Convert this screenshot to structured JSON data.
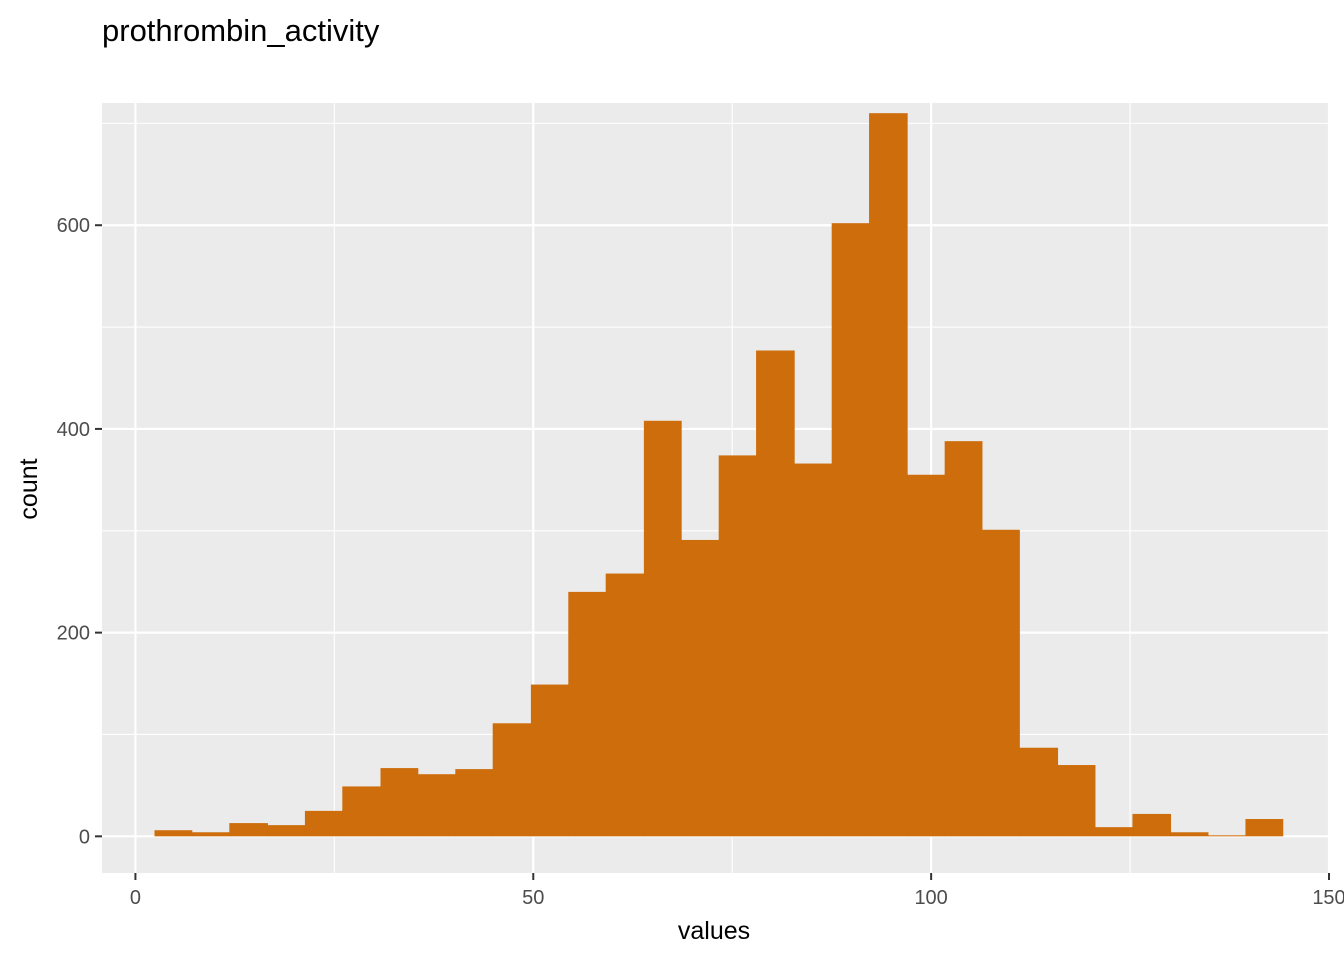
{
  "chart_data": {
    "type": "bar",
    "title": "prothrombin_activity",
    "xlabel": "values",
    "ylabel": "count",
    "xlim": [
      -4.2,
      150
    ],
    "ylim": [
      -36,
      720
    ],
    "x_ticks": [
      0,
      50,
      100,
      150
    ],
    "y_ticks": [
      0,
      200,
      400,
      600
    ],
    "grid": true,
    "bar_color": "#CD6D0B",
    "panel_color": "#EBEBEB",
    "bins": [
      {
        "x0": 2.4,
        "x1": 7.1,
        "count": 6
      },
      {
        "x0": 7.1,
        "x1": 11.8,
        "count": 4
      },
      {
        "x0": 11.8,
        "x1": 16.6,
        "count": 13
      },
      {
        "x0": 16.6,
        "x1": 21.3,
        "count": 11
      },
      {
        "x0": 21.3,
        "x1": 26.0,
        "count": 25
      },
      {
        "x0": 26.0,
        "x1": 30.8,
        "count": 49
      },
      {
        "x0": 30.8,
        "x1": 35.5,
        "count": 67
      },
      {
        "x0": 35.5,
        "x1": 40.2,
        "count": 61
      },
      {
        "x0": 40.2,
        "x1": 44.9,
        "count": 66
      },
      {
        "x0": 44.9,
        "x1": 49.7,
        "count": 111
      },
      {
        "x0": 49.7,
        "x1": 54.4,
        "count": 149
      },
      {
        "x0": 54.4,
        "x1": 59.1,
        "count": 240
      },
      {
        "x0": 59.1,
        "x1": 63.9,
        "count": 258
      },
      {
        "x0": 63.9,
        "x1": 68.6,
        "count": 408
      },
      {
        "x0": 68.6,
        "x1": 73.3,
        "count": 291
      },
      {
        "x0": 73.3,
        "x1": 78.0,
        "count": 374
      },
      {
        "x0": 78.0,
        "x1": 82.8,
        "count": 477
      },
      {
        "x0": 82.8,
        "x1": 87.5,
        "count": 366
      },
      {
        "x0": 87.5,
        "x1": 92.2,
        "count": 602
      },
      {
        "x0": 92.2,
        "x1": 97.0,
        "count": 710
      },
      {
        "x0": 97.0,
        "x1": 101.7,
        "count": 355
      },
      {
        "x0": 101.7,
        "x1": 106.4,
        "count": 388
      },
      {
        "x0": 106.4,
        "x1": 111.1,
        "count": 301
      },
      {
        "x0": 111.1,
        "x1": 115.9,
        "count": 87
      },
      {
        "x0": 115.9,
        "x1": 120.6,
        "count": 70
      },
      {
        "x0": 120.6,
        "x1": 125.3,
        "count": 9
      },
      {
        "x0": 125.3,
        "x1": 130.1,
        "count": 22
      },
      {
        "x0": 130.1,
        "x1": 134.8,
        "count": 4
      },
      {
        "x0": 134.8,
        "x1": 139.5,
        "count": 1
      },
      {
        "x0": 139.5,
        "x1": 144.2,
        "count": 17
      }
    ]
  }
}
